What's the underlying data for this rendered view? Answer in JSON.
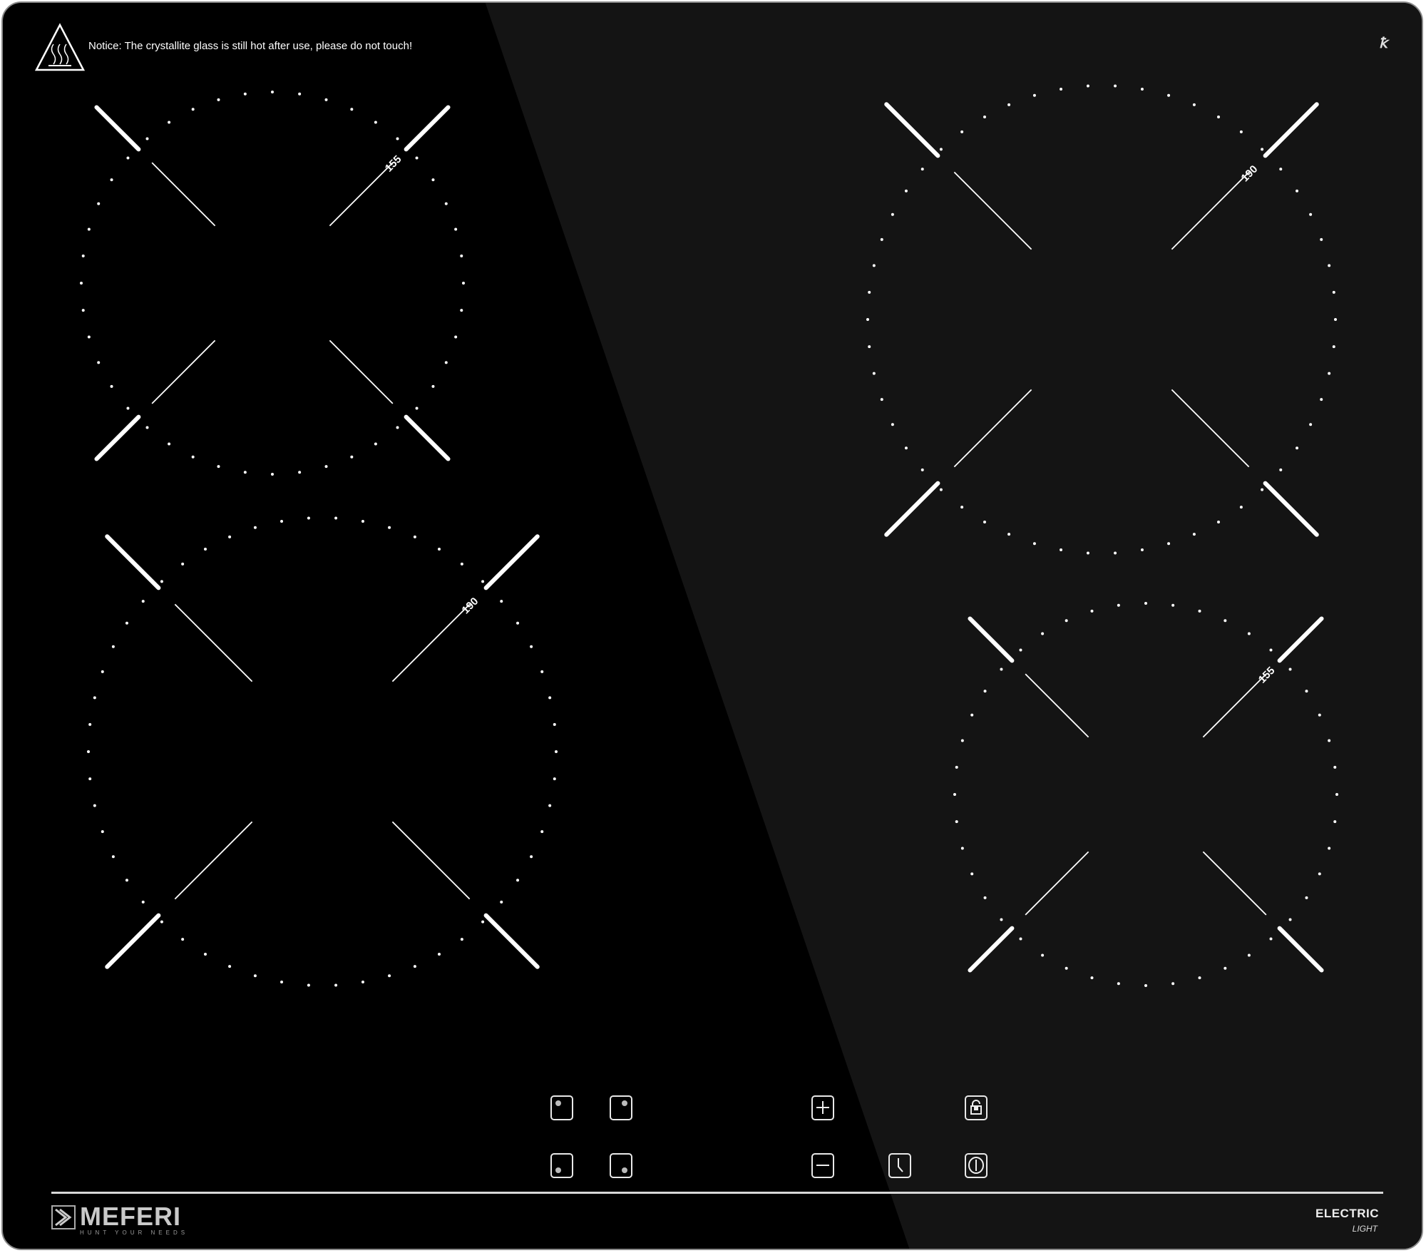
{
  "notice": {
    "text": "Notice: The crystallite glass is still hot after use, please do not touch!",
    "icon": "hot-surface-warning-icon"
  },
  "burners": [
    {
      "id": "top-left",
      "label": "155"
    },
    {
      "id": "bottom-left",
      "label": "190"
    },
    {
      "id": "top-right",
      "label": "190"
    },
    {
      "id": "bottom-right",
      "label": "155"
    }
  ],
  "controls": [
    {
      "name": "zone-top-left-button",
      "icon": "zone-top-left-icon"
    },
    {
      "name": "zone-top-right-button",
      "icon": "zone-top-right-icon"
    },
    {
      "name": "zone-bottom-left-button",
      "icon": "zone-bottom-left-icon"
    },
    {
      "name": "zone-bottom-right-button",
      "icon": "zone-bottom-right-icon"
    },
    {
      "name": "plus-button",
      "icon": "plus-icon"
    },
    {
      "name": "minus-button",
      "icon": "minus-icon"
    },
    {
      "name": "timer-button",
      "icon": "clock-icon"
    },
    {
      "name": "lock-button",
      "icon": "unlock-icon"
    },
    {
      "name": "power-button",
      "icon": "power-icon"
    }
  ],
  "brand": {
    "name": "MEFERI",
    "tagline": "HUNT YOUR NEEDS"
  },
  "product": {
    "type": "ELECTRIC",
    "series": "LIGHT"
  },
  "colors": {
    "glass": "#000000",
    "glare": "#141414",
    "markings": "#ffffff",
    "frame": "#8a8a8a"
  }
}
